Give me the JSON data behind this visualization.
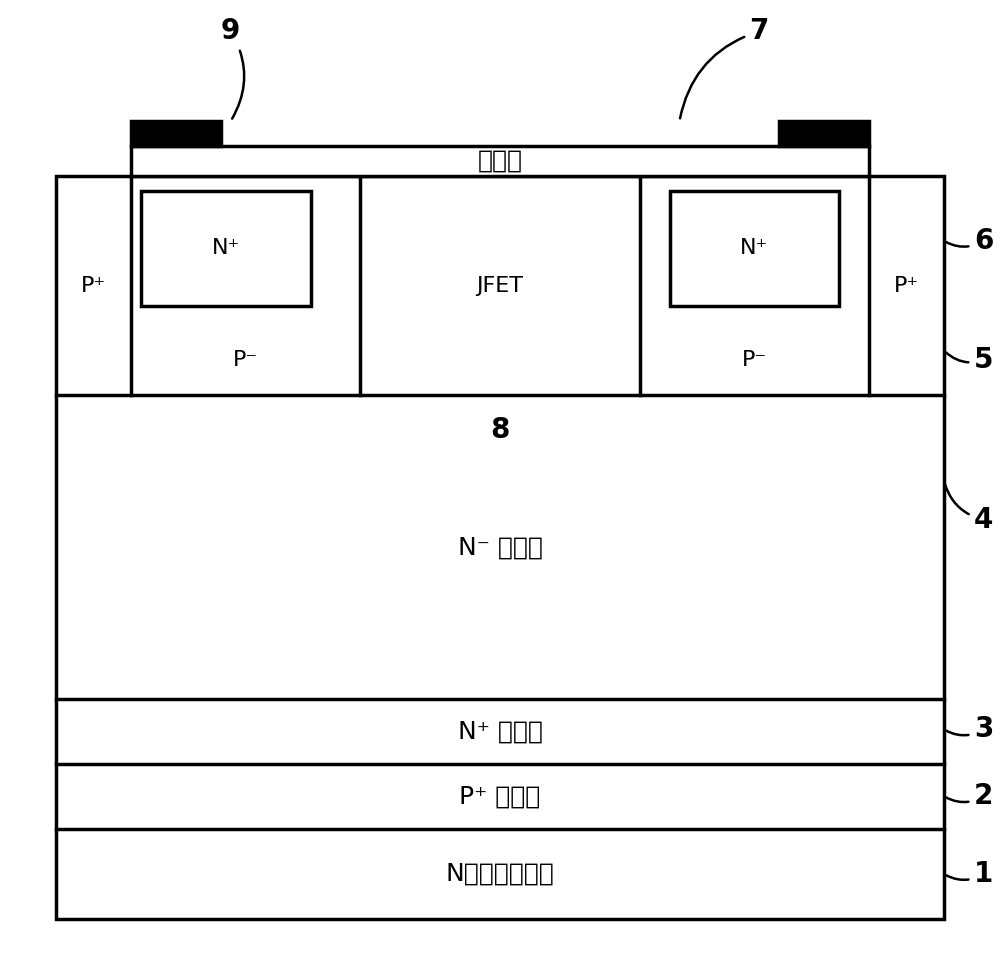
{
  "fig_width": 10.0,
  "fig_height": 9.64,
  "bg_color": "#ffffff",
  "line_color": "#000000",
  "line_width": 2.5,
  "labels": {
    "substrate": "N型碳化硅衬底",
    "epitaxial": "P⁺ 外延层",
    "buffer": "N⁺ 缓冲层",
    "drift": "N⁻ 漂移层",
    "gate_oxide": "栊氧层",
    "jfet": "JFET",
    "p_minus": "P⁻",
    "n_plus": "N⁺",
    "p_plus": "P⁺"
  },
  "annotation_nums": [
    "1",
    "2",
    "3",
    "4",
    "5",
    "6",
    "7",
    "8",
    "9"
  ],
  "font_size_layer": 18,
  "font_size_region": 16,
  "font_size_annotation": 20
}
